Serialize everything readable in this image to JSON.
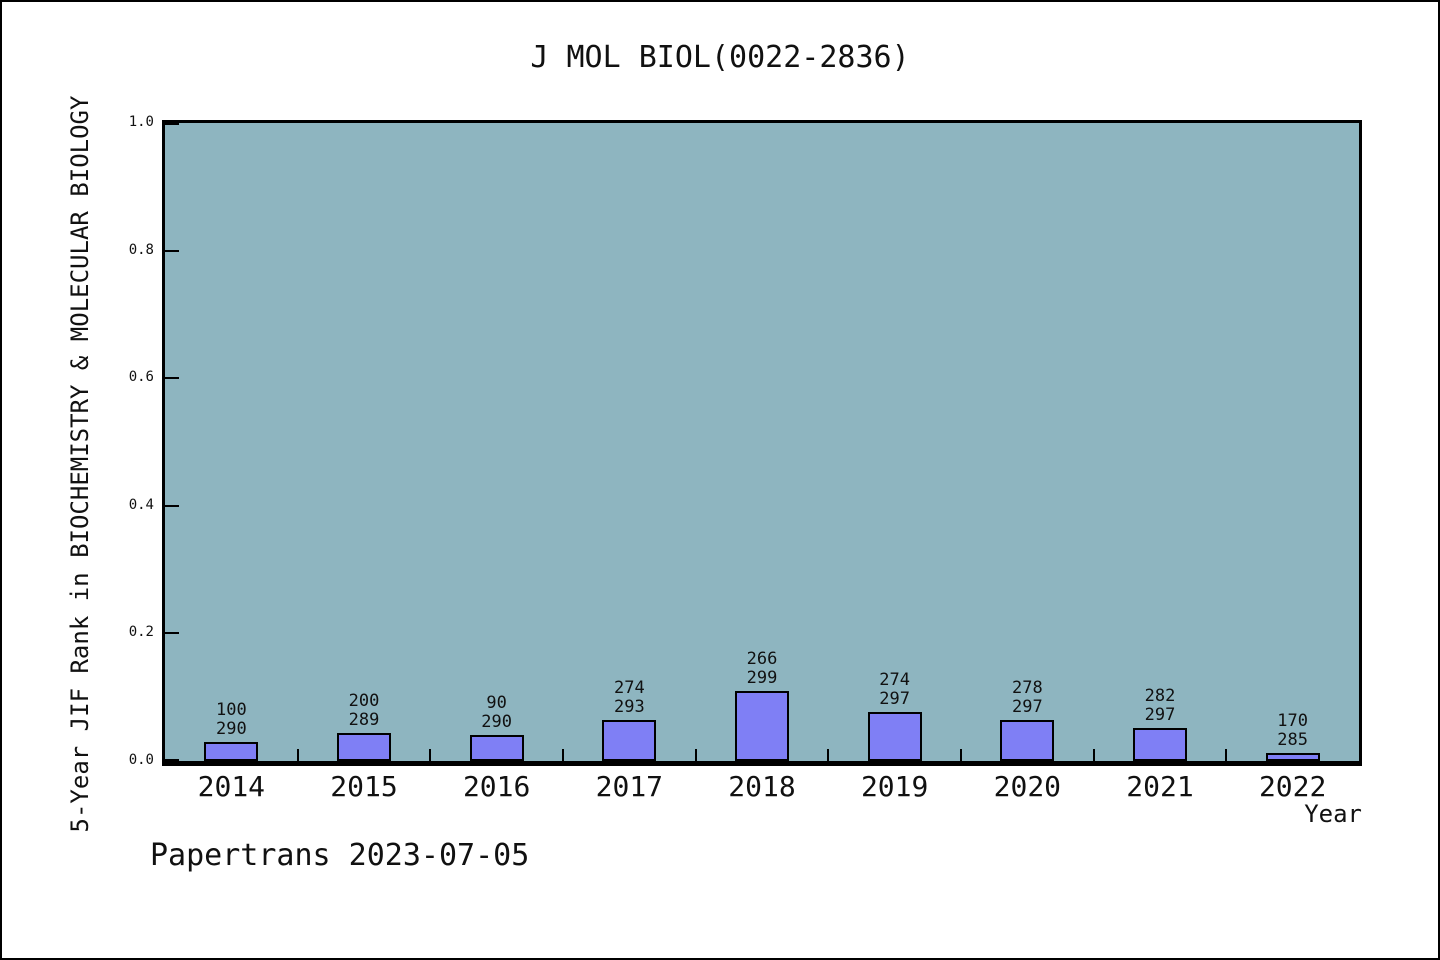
{
  "footer": {
    "text": "Papertrans 2023-07-05"
  },
  "chart_data": {
    "type": "bar",
    "title": "J MOL BIOL(0022-2836)",
    "xlabel": "Year",
    "ylabel": "5-Year JIF Rank in BIOCHEMISTRY & MOLECULAR BIOLOGY",
    "ylim": [
      0.0,
      1.0
    ],
    "yticks": [
      0.0,
      0.2,
      0.4,
      0.6,
      0.8,
      1.0
    ],
    "grid": false,
    "legend": false,
    "categories": [
      "2014",
      "2015",
      "2016",
      "2017",
      "2018",
      "2019",
      "2020",
      "2021",
      "2022"
    ],
    "values": [
      0.03,
      0.044,
      0.041,
      0.065,
      0.11,
      0.077,
      0.064,
      0.051,
      0.013
    ],
    "annotations": [
      {
        "rank": "100",
        "total": "290"
      },
      {
        "rank": "200",
        "total": "289"
      },
      {
        "rank": "90",
        "total": "290"
      },
      {
        "rank": "274",
        "total": "293"
      },
      {
        "rank": "266",
        "total": "299"
      },
      {
        "rank": "274",
        "total": "297"
      },
      {
        "rank": "278",
        "total": "297"
      },
      {
        "rank": "282",
        "total": "297"
      },
      {
        "rank": "170",
        "total": "285"
      }
    ],
    "colors": {
      "bar_fill": "#7F7FF5",
      "bar_edge": "#000000",
      "plot_bg": "#8EB5C0",
      "figure_bg": "#FFFFFF",
      "text": "#111111"
    }
  }
}
